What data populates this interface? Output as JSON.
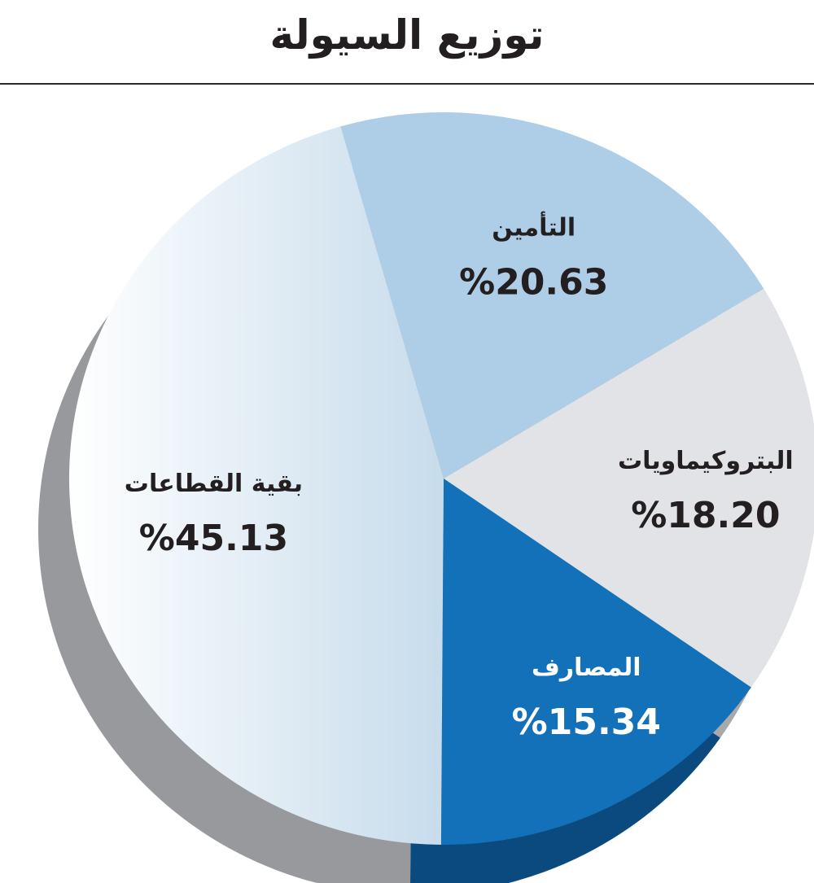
{
  "title": "توزيع السيولة",
  "chart_data": {
    "type": "pie",
    "title": "توزيع السيولة",
    "slices": [
      {
        "label": "التأمين",
        "value": 20.63,
        "display": "%20.63",
        "color": "#aecde6"
      },
      {
        "label": "البتروكيماويات",
        "value": 18.2,
        "display": "%18.20",
        "color": "#e1e3e6"
      },
      {
        "label": "المصارف",
        "value": 15.34,
        "display": "%15.34",
        "color": "#1271b8"
      },
      {
        "label": "بقية القطاعات",
        "value": 45.13,
        "display": "%45.13",
        "color": "#e4eef7"
      }
    ]
  }
}
